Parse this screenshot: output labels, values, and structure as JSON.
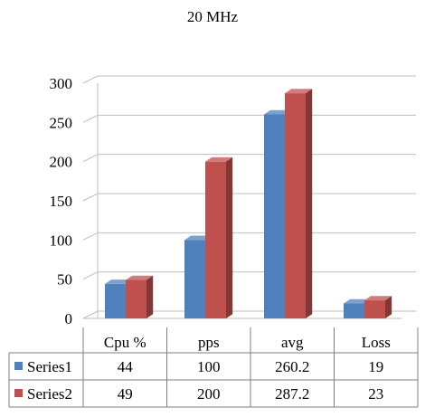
{
  "chart_data": {
    "type": "bar",
    "title": "20 MHz",
    "categories": [
      "Cpu %",
      "pps",
      "avg",
      "Loss"
    ],
    "series": [
      {
        "name": "Series1",
        "values": [
          44,
          100,
          260.2,
          19
        ],
        "color": "#4f81bd"
      },
      {
        "name": "Series2",
        "values": [
          49,
          200,
          287.2,
          23
        ],
        "color": "#c0504d"
      }
    ],
    "yticks": [
      "0",
      "50",
      "100",
      "150",
      "200",
      "250",
      "300"
    ],
    "ylim": [
      0,
      300
    ],
    "grid": true,
    "three_d": true,
    "legend": "data-table",
    "table_rows": [
      {
        "series": "Series1",
        "cells": [
          "44",
          "100",
          "260.2",
          "19"
        ]
      },
      {
        "series": "Series2",
        "cells": [
          "49",
          "200",
          "287.2",
          "23"
        ]
      }
    ]
  }
}
